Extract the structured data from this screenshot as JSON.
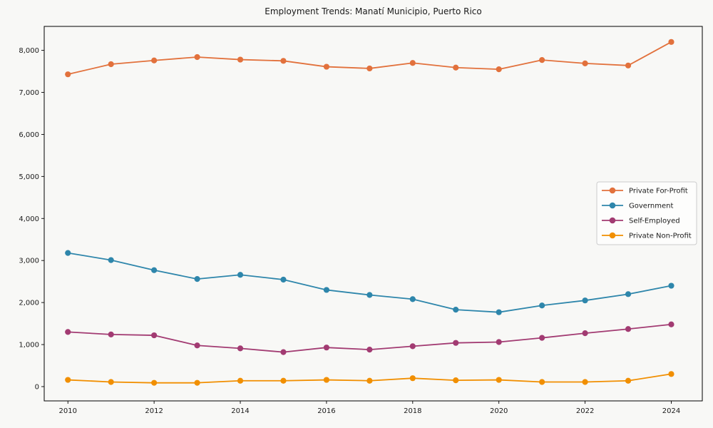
{
  "chart_data": {
    "type": "line",
    "title": "Employment Trends: Manatí Municipio, Puerto Rico",
    "xlabel": "",
    "ylabel": "",
    "grid": false,
    "legend_position": "center-right",
    "x": [
      2010,
      2011,
      2012,
      2013,
      2014,
      2015,
      2016,
      2017,
      2018,
      2019,
      2020,
      2021,
      2022,
      2023,
      2024
    ],
    "series": [
      {
        "name": "Private For-Profit",
        "color": "#E2713C",
        "values": [
          7430,
          7670,
          7760,
          7840,
          7780,
          7750,
          7610,
          7570,
          7700,
          7590,
          7550,
          7770,
          7690,
          7640,
          8200
        ]
      },
      {
        "name": "Government",
        "color": "#2E86AB",
        "values": [
          3180,
          3010,
          2770,
          2560,
          2660,
          2545,
          2300,
          2180,
          2080,
          1830,
          1770,
          1930,
          2050,
          2200,
          2400
        ]
      },
      {
        "name": "Self-Employed",
        "color": "#A23B72",
        "values": [
          1300,
          1240,
          1220,
          980,
          910,
          820,
          930,
          880,
          960,
          1040,
          1060,
          1160,
          1270,
          1370,
          1480
        ]
      },
      {
        "name": "Private Non-Profit",
        "color": "#F18F01",
        "values": [
          160,
          110,
          90,
          90,
          140,
          140,
          160,
          140,
          200,
          150,
          160,
          110,
          110,
          140,
          300
        ]
      }
    ],
    "xticks": [
      2010,
      2012,
      2014,
      2016,
      2018,
      2020,
      2022,
      2024
    ],
    "xtick_labels": [
      "2010",
      "2012",
      "2014",
      "2016",
      "2018",
      "2020",
      "2022",
      "2024"
    ],
    "yticks": [
      0,
      1000,
      2000,
      3000,
      4000,
      5000,
      6000,
      7000,
      8000
    ],
    "ytick_labels": [
      "0",
      "1,000",
      "2,000",
      "3,000",
      "4,000",
      "5,000",
      "6,000",
      "7,000",
      "8,000"
    ],
    "xlim": [
      2009.45,
      2024.72
    ],
    "ylim": [
      -340,
      8570
    ]
  },
  "style": {
    "background": "#f8f8f6",
    "spine_color": "#000000",
    "text_color": "#1a1a1a",
    "legend_border": "#cccccc",
    "legend_fill": "#fdfdfc"
  }
}
